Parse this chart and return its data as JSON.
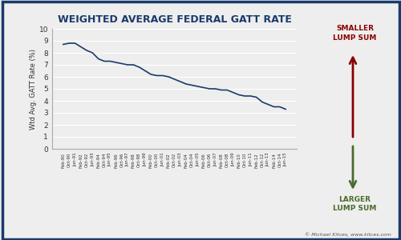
{
  "title": "WEIGHTED AVERAGE FEDERAL GATT RATE",
  "ylabel": "Wtd Avg. GATT Rate (%)",
  "ylim": [
    0,
    10
  ],
  "yticks": [
    0,
    1,
    2,
    3,
    4,
    5,
    6,
    7,
    8,
    9,
    10
  ],
  "line_color": "#1a3a6b",
  "background_color": "#eeeeee",
  "border_color": "#1a3a6b",
  "title_color": "#1a3a6b",
  "watermark": "© Michael Kitces, www.kitces.com",
  "smaller_label": "SMALLER\nLUMP SUM",
  "larger_label": "LARGER\nLUMP SUM",
  "arrow_up_color": "#8b0000",
  "arrow_down_color": "#4a6b2a",
  "x_labels": [
    "Feb-90",
    "Oct-90",
    "Jun-91",
    "Feb-92",
    "Oct-92",
    "Jun-93",
    "Feb-94",
    "Oct-94",
    "Jun-95",
    "Feb-96",
    "Oct-96",
    "Jun-97",
    "Feb-98",
    "Oct-98",
    "Jun-99",
    "Feb-00",
    "Oct-00",
    "Jun-01",
    "Feb-02",
    "Oct-02",
    "Jun-03",
    "Feb-04",
    "Oct-04",
    "Jun-05",
    "Feb-06",
    "Oct-06",
    "Jun-07",
    "Feb-08",
    "Oct-08",
    "Jun-09",
    "Feb-10",
    "Oct-10",
    "Jun-11",
    "Feb-12",
    "Oct-12",
    "Jun-13",
    "Feb-14",
    "Oct-14",
    "Jun-15"
  ],
  "y_values": [
    8.7,
    8.8,
    8.8,
    8.5,
    8.2,
    8.0,
    7.5,
    7.3,
    7.3,
    7.2,
    7.1,
    7.0,
    7.0,
    6.8,
    6.5,
    6.2,
    6.1,
    6.1,
    6.0,
    5.8,
    5.6,
    5.4,
    5.3,
    5.2,
    5.1,
    5.0,
    5.0,
    4.9,
    4.9,
    4.7,
    4.5,
    4.4,
    4.4,
    4.3,
    3.9,
    3.7,
    3.5,
    3.5,
    3.3
  ]
}
